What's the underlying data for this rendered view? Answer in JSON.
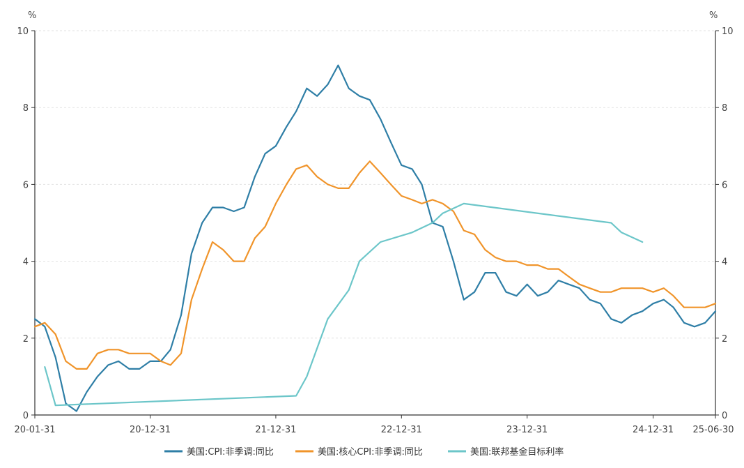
{
  "chart_data": {
    "type": "line",
    "title": "",
    "y_left": {
      "unit": "%",
      "ylim": [
        0,
        10
      ],
      "ticks": [
        0,
        2,
        4,
        6,
        8,
        10
      ]
    },
    "y_right": {
      "unit": "%",
      "ylim": [
        0,
        10
      ],
      "ticks": [
        0,
        2,
        4,
        6,
        8,
        10
      ]
    },
    "x_range": [
      "2020-01-31",
      "2025-06-30"
    ],
    "x_ticks": [
      {
        "date": "2020-01-31",
        "label": "20-01-31"
      },
      {
        "date": "2020-12-31",
        "label": "20-12-31"
      },
      {
        "date": "2021-12-31",
        "label": "21-12-31"
      },
      {
        "date": "2022-12-31",
        "label": "22-12-31"
      },
      {
        "date": "2023-12-31",
        "label": "23-12-31"
      },
      {
        "date": "2024-12-31",
        "label": "24-12-31"
      },
      {
        "date": "2025-06-30",
        "label": "25-06-30"
      }
    ],
    "grid": true,
    "legend_position": "bottom",
    "series": [
      {
        "name": "美国:CPI:非季调:同比",
        "color": "#2e7ea6",
        "points": [
          [
            "2020-01-31",
            2.5
          ],
          [
            "2020-02-29",
            2.3
          ],
          [
            "2020-03-31",
            1.5
          ],
          [
            "2020-04-30",
            0.3
          ],
          [
            "2020-05-31",
            0.1
          ],
          [
            "2020-06-30",
            0.6
          ],
          [
            "2020-07-31",
            1.0
          ],
          [
            "2020-08-31",
            1.3
          ],
          [
            "2020-09-30",
            1.4
          ],
          [
            "2020-10-31",
            1.2
          ],
          [
            "2020-11-30",
            1.2
          ],
          [
            "2020-12-31",
            1.4
          ],
          [
            "2021-01-31",
            1.4
          ],
          [
            "2021-02-28",
            1.7
          ],
          [
            "2021-03-31",
            2.6
          ],
          [
            "2021-04-30",
            4.2
          ],
          [
            "2021-05-31",
            5.0
          ],
          [
            "2021-06-30",
            5.4
          ],
          [
            "2021-07-31",
            5.4
          ],
          [
            "2021-08-31",
            5.3
          ],
          [
            "2021-09-30",
            5.4
          ],
          [
            "2021-10-31",
            6.2
          ],
          [
            "2021-11-30",
            6.8
          ],
          [
            "2021-12-31",
            7.0
          ],
          [
            "2022-01-31",
            7.5
          ],
          [
            "2022-02-28",
            7.9
          ],
          [
            "2022-03-31",
            8.5
          ],
          [
            "2022-04-30",
            8.3
          ],
          [
            "2022-05-31",
            8.6
          ],
          [
            "2022-06-30",
            9.1
          ],
          [
            "2022-07-31",
            8.5
          ],
          [
            "2022-08-31",
            8.3
          ],
          [
            "2022-09-30",
            8.2
          ],
          [
            "2022-10-31",
            7.7
          ],
          [
            "2022-11-30",
            7.1
          ],
          [
            "2022-12-31",
            6.5
          ],
          [
            "2023-01-31",
            6.4
          ],
          [
            "2023-02-28",
            6.0
          ],
          [
            "2023-03-31",
            5.0
          ],
          [
            "2023-04-30",
            4.9
          ],
          [
            "2023-05-31",
            4.0
          ],
          [
            "2023-06-30",
            3.0
          ],
          [
            "2023-07-31",
            3.2
          ],
          [
            "2023-08-31",
            3.7
          ],
          [
            "2023-09-30",
            3.7
          ],
          [
            "2023-10-31",
            3.2
          ],
          [
            "2023-11-30",
            3.1
          ],
          [
            "2023-12-31",
            3.4
          ],
          [
            "2024-01-31",
            3.1
          ],
          [
            "2024-02-29",
            3.2
          ],
          [
            "2024-03-31",
            3.5
          ],
          [
            "2024-04-30",
            3.4
          ],
          [
            "2024-05-31",
            3.3
          ],
          [
            "2024-06-30",
            3.0
          ],
          [
            "2024-07-31",
            2.9
          ],
          [
            "2024-08-31",
            2.5
          ],
          [
            "2024-09-30",
            2.4
          ],
          [
            "2024-10-31",
            2.6
          ],
          [
            "2024-11-30",
            2.7
          ],
          [
            "2024-12-31",
            2.9
          ],
          [
            "2025-01-31",
            3.0
          ],
          [
            "2025-02-28",
            2.8
          ],
          [
            "2025-03-31",
            2.4
          ],
          [
            "2025-04-30",
            2.3
          ],
          [
            "2025-05-31",
            2.4
          ],
          [
            "2025-06-30",
            2.7
          ]
        ]
      },
      {
        "name": "美国:核心CPI:非季调:同比",
        "color": "#f0942a",
        "points": [
          [
            "2020-01-31",
            2.3
          ],
          [
            "2020-02-29",
            2.4
          ],
          [
            "2020-03-31",
            2.1
          ],
          [
            "2020-04-30",
            1.4
          ],
          [
            "2020-05-31",
            1.2
          ],
          [
            "2020-06-30",
            1.2
          ],
          [
            "2020-07-31",
            1.6
          ],
          [
            "2020-08-31",
            1.7
          ],
          [
            "2020-09-30",
            1.7
          ],
          [
            "2020-10-31",
            1.6
          ],
          [
            "2020-11-30",
            1.6
          ],
          [
            "2020-12-31",
            1.6
          ],
          [
            "2021-01-31",
            1.4
          ],
          [
            "2021-02-28",
            1.3
          ],
          [
            "2021-03-31",
            1.6
          ],
          [
            "2021-04-30",
            3.0
          ],
          [
            "2021-05-31",
            3.8
          ],
          [
            "2021-06-30",
            4.5
          ],
          [
            "2021-07-31",
            4.3
          ],
          [
            "2021-08-31",
            4.0
          ],
          [
            "2021-09-30",
            4.0
          ],
          [
            "2021-10-31",
            4.6
          ],
          [
            "2021-11-30",
            4.9
          ],
          [
            "2021-12-31",
            5.5
          ],
          [
            "2022-01-31",
            6.0
          ],
          [
            "2022-02-28",
            6.4
          ],
          [
            "2022-03-31",
            6.5
          ],
          [
            "2022-04-30",
            6.2
          ],
          [
            "2022-05-31",
            6.0
          ],
          [
            "2022-06-30",
            5.9
          ],
          [
            "2022-07-31",
            5.9
          ],
          [
            "2022-08-31",
            6.3
          ],
          [
            "2022-09-30",
            6.6
          ],
          [
            "2022-10-31",
            6.3
          ],
          [
            "2022-11-30",
            6.0
          ],
          [
            "2022-12-31",
            5.7
          ],
          [
            "2023-01-31",
            5.6
          ],
          [
            "2023-02-28",
            5.5
          ],
          [
            "2023-03-31",
            5.6
          ],
          [
            "2023-04-30",
            5.5
          ],
          [
            "2023-05-31",
            5.3
          ],
          [
            "2023-06-30",
            4.8
          ],
          [
            "2023-07-31",
            4.7
          ],
          [
            "2023-08-31",
            4.3
          ],
          [
            "2023-09-30",
            4.1
          ],
          [
            "2023-10-31",
            4.0
          ],
          [
            "2023-11-30",
            4.0
          ],
          [
            "2023-12-31",
            3.9
          ],
          [
            "2024-01-31",
            3.9
          ],
          [
            "2024-02-29",
            3.8
          ],
          [
            "2024-03-31",
            3.8
          ],
          [
            "2024-04-30",
            3.6
          ],
          [
            "2024-05-31",
            3.4
          ],
          [
            "2024-06-30",
            3.3
          ],
          [
            "2024-07-31",
            3.2
          ],
          [
            "2024-08-31",
            3.2
          ],
          [
            "2024-09-30",
            3.3
          ],
          [
            "2024-10-31",
            3.3
          ],
          [
            "2024-11-30",
            3.3
          ],
          [
            "2024-12-31",
            3.2
          ],
          [
            "2025-01-31",
            3.3
          ],
          [
            "2025-02-28",
            3.1
          ],
          [
            "2025-03-31",
            2.8
          ],
          [
            "2025-04-30",
            2.8
          ],
          [
            "2025-05-31",
            2.8
          ],
          [
            "2025-06-30",
            2.9
          ]
        ]
      },
      {
        "name": "美国:联邦基金目标利率",
        "color": "#6cc6c9",
        "points": [
          [
            "2020-02-29",
            1.25
          ],
          [
            "2020-03-31",
            0.25
          ],
          [
            "2022-02-28",
            0.5
          ],
          [
            "2022-03-31",
            1.0
          ],
          [
            "2022-05-31",
            2.5
          ],
          [
            "2022-07-31",
            3.25
          ],
          [
            "2022-08-31",
            4.0
          ],
          [
            "2022-10-31",
            4.5
          ],
          [
            "2023-01-31",
            4.75
          ],
          [
            "2023-03-31",
            5.0
          ],
          [
            "2023-04-30",
            5.25
          ],
          [
            "2023-06-30",
            5.5
          ],
          [
            "2024-08-31",
            5.0
          ],
          [
            "2024-09-30",
            4.75
          ],
          [
            "2024-11-30",
            4.5
          ]
        ]
      }
    ]
  }
}
